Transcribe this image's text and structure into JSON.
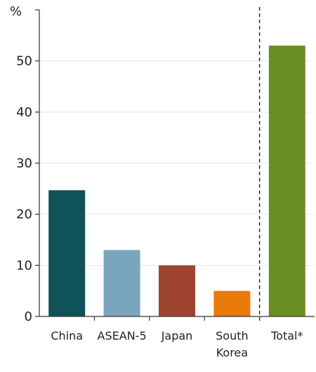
{
  "chart_data": {
    "type": "bar",
    "title": "",
    "xlabel": "",
    "ylabel": "%",
    "ylim": [
      0,
      60
    ],
    "yticks": [
      0,
      10,
      20,
      30,
      40,
      50
    ],
    "grid": true,
    "categories": [
      {
        "label": [
          "China"
        ],
        "value": 24.7,
        "color": "#0f5257"
      },
      {
        "label": [
          "ASEAN-5"
        ],
        "value": 13.0,
        "color": "#7aa6bd"
      },
      {
        "label": [
          "Japan"
        ],
        "value": 10.0,
        "color": "#9e4430"
      },
      {
        "label": [
          "South",
          "Korea"
        ],
        "value": 5.0,
        "color": "#eb7a0c"
      },
      {
        "label": [
          "Total*"
        ],
        "value": 53.0,
        "color": "#6b8e23"
      }
    ],
    "separator_before_category": "Total*"
  }
}
